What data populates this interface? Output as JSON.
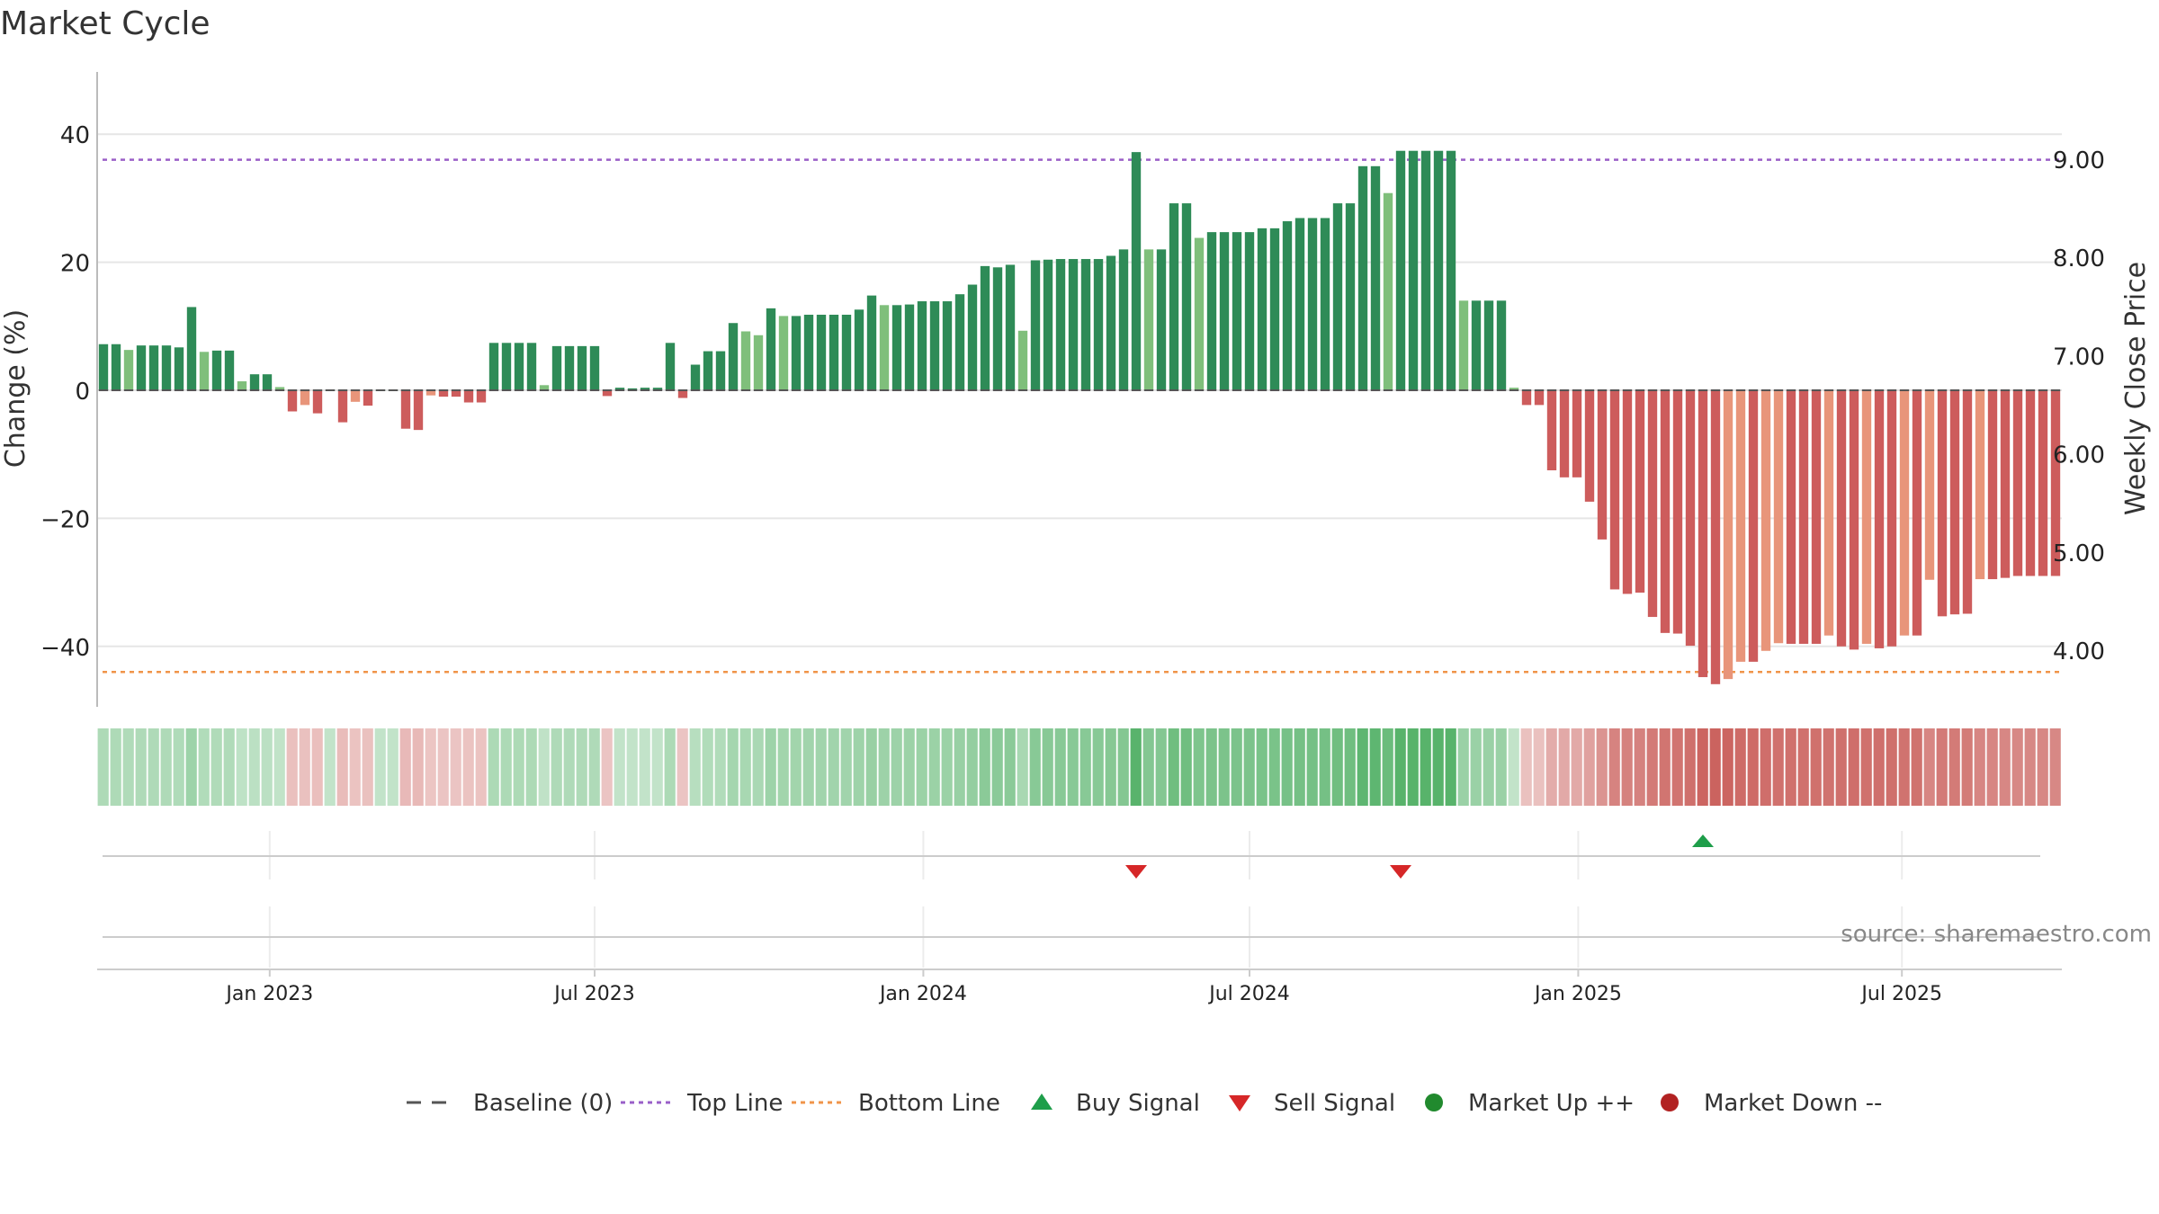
{
  "chart_data": {
    "type": "bar",
    "title": "Market Cycle",
    "ylabel_left": "Change (%)",
    "ylabel_right": "Weekly Close Price",
    "ylim_left": [
      -49,
      50
    ],
    "y_ticks_left": [
      "40",
      "20",
      "0",
      "−20",
      "−40"
    ],
    "y_tick_values_left": [
      40,
      20,
      0,
      -20,
      -40
    ],
    "y_ticks_right": [
      "9.00",
      "8.00",
      "7.00",
      "6.00",
      "5.00",
      "4.00"
    ],
    "y_tick_values_right": [
      9.0,
      8.0,
      7.0,
      6.0,
      5.0,
      4.0
    ],
    "ylim_right": [
      3.45,
      10.12
    ],
    "x_ticks": [
      "Jan 2023",
      "Jul 2023",
      "Jan 2024",
      "Jul 2024",
      "Jan 2025",
      "Jul 2025"
    ],
    "x_tick_week_index": [
      13.7,
      39.5,
      65.6,
      91.5,
      117.6,
      143.3
    ],
    "top_line": 36,
    "bottom_line": -44,
    "grid": true,
    "legend_position": "bottom",
    "source": "source: sharemaestro.com",
    "series": [
      {
        "values": [
          7.2,
          7.2,
          6.3,
          7.0,
          7.0,
          7.0,
          6.7,
          13.0,
          6.0,
          6.2,
          6.2,
          1.4,
          2.5,
          2.5,
          0.5,
          -3.3,
          -2.3,
          -3.6,
          0.1,
          -5.0,
          -1.8,
          -2.4,
          0.1,
          0.1,
          -6.0,
          -6.2,
          -0.8,
          -1.0,
          -1.0,
          -1.9,
          -1.9,
          7.4,
          7.4,
          7.4,
          7.4,
          0.8,
          6.9,
          6.9,
          6.9,
          6.9,
          -0.9,
          0.4,
          0.3,
          0.4,
          0.4,
          7.4,
          -1.2,
          4.0,
          6.1,
          6.1,
          10.5,
          9.2,
          8.6,
          12.8,
          11.6,
          11.6,
          11.8,
          11.8,
          11.8,
          11.8,
          12.6,
          14.8,
          13.3,
          13.3,
          13.4,
          13.9,
          13.9,
          13.9,
          15.0,
          16.5,
          19.4,
          19.2,
          19.6,
          9.3,
          20.3,
          20.4,
          20.5,
          20.5,
          20.5,
          20.5,
          21.0,
          22.0,
          37.2,
          22.0,
          22.0,
          29.2,
          29.2,
          23.8,
          24.7,
          24.7,
          24.7,
          24.7,
          25.3,
          25.3,
          26.4,
          26.9,
          26.9,
          26.9,
          29.2,
          29.2,
          35.0,
          35.0,
          30.8,
          37.4,
          37.4,
          37.4,
          37.4,
          37.4,
          14.0,
          14.0,
          14.0,
          14.0,
          0.4,
          -2.3,
          -2.3,
          -12.5,
          -13.6,
          -13.6,
          -17.4,
          -23.3,
          -31.1,
          -31.8,
          -31.6,
          -35.4,
          -37.9,
          -38.0,
          -39.9,
          -44.8,
          -45.9,
          -45.1,
          -42.4,
          -42.4,
          -40.7,
          -39.5,
          -39.6,
          -39.6,
          -39.6,
          -38.3,
          -40.0,
          -40.5,
          -39.6,
          -40.3,
          -40.0,
          -38.3,
          -38.3,
          -29.6,
          -35.3,
          -35.0,
          -34.9,
          -29.5,
          -29.5,
          -29.3,
          -29.0,
          -29.0,
          -29.0,
          -29.0
        ]
      }
    ],
    "signals": {
      "sell_week_index": [
        82,
        103
      ],
      "buy_week_index": [
        127
      ]
    },
    "legend": [
      {
        "label": "Baseline (0)",
        "kind": "dash",
        "color": "#555555"
      },
      {
        "label": "Top Line",
        "kind": "dot",
        "color": "#9a5fc8"
      },
      {
        "label": "Bottom Line",
        "kind": "dot",
        "color": "#f0944a"
      },
      {
        "label": "Buy Signal",
        "kind": "tri-up",
        "color": "#1e9e4a"
      },
      {
        "label": "Sell Signal",
        "kind": "tri-down",
        "color": "#d62728"
      },
      {
        "label": "Market Up ++",
        "kind": "circle",
        "color": "#218a2e"
      },
      {
        "label": "Market Down --",
        "kind": "circle",
        "color": "#b22222"
      }
    ]
  }
}
